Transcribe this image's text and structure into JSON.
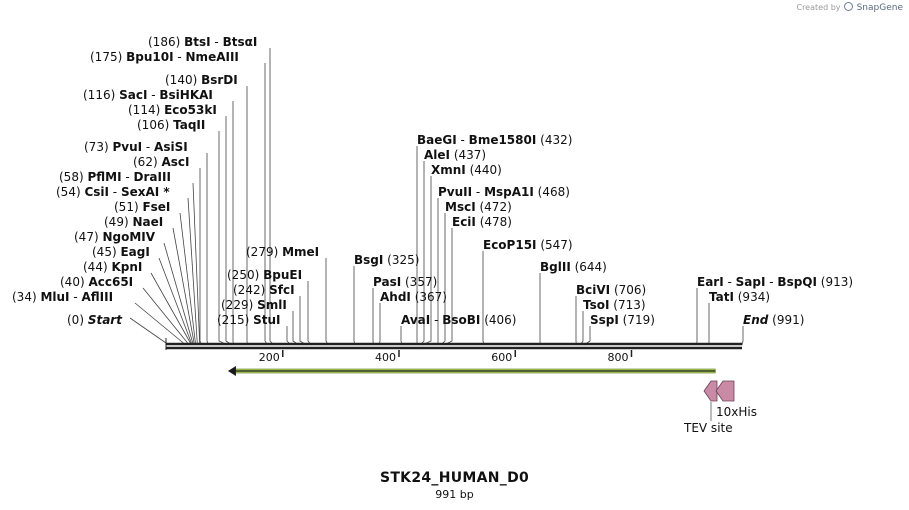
{
  "credit": {
    "prefix": "Created by",
    "brand": "SnapGene"
  },
  "sequence": {
    "name": "STK24_HUMAN_D0",
    "length_label": "991 bp",
    "length": 991
  },
  "ruler": {
    "ticks": [
      200,
      400,
      600,
      800
    ]
  },
  "colors": {
    "feature_arrow": "#b1d35a",
    "tag": "#c98aa6",
    "backbone": "#222222"
  },
  "features": [
    {
      "name": "CDS",
      "start": 110,
      "end": 945,
      "direction": "reverse"
    },
    {
      "name": "10xHis",
      "start": 920,
      "end": 948,
      "direction": "reverse"
    },
    {
      "name": "TEV site",
      "start": 944,
      "end": 966,
      "direction": "reverse"
    }
  ],
  "feature_labels": {
    "his": "10xHis",
    "tev": "TEV site"
  },
  "sites": [
    {
      "pos": 186,
      "pos_text": "(186)",
      "names": [
        "BtsI",
        "BtsαI"
      ],
      "side": "left"
    },
    {
      "pos": 175,
      "pos_text": "(175)",
      "names": [
        "Bpu10I",
        "NmeAIII"
      ],
      "side": "left"
    },
    {
      "pos": 140,
      "pos_text": "(140)",
      "names": [
        "BsrDI"
      ],
      "side": "left"
    },
    {
      "pos": 116,
      "pos_text": "(116)",
      "names": [
        "SacI",
        "BsiHKAI"
      ],
      "side": "left"
    },
    {
      "pos": 114,
      "pos_text": "(114)",
      "names": [
        "Eco53kI"
      ],
      "side": "left"
    },
    {
      "pos": 106,
      "pos_text": "(106)",
      "names": [
        "TaqII"
      ],
      "side": "left"
    },
    {
      "pos": 73,
      "pos_text": "(73)",
      "names": [
        "PvuI",
        "AsiSI"
      ],
      "side": "left"
    },
    {
      "pos": 62,
      "pos_text": "(62)",
      "names": [
        "AscI"
      ],
      "side": "left"
    },
    {
      "pos": 58,
      "pos_text": "(58)",
      "names": [
        "PflMI",
        "DraIII"
      ],
      "side": "left"
    },
    {
      "pos": 54,
      "pos_text": "(54)",
      "names": [
        "CsiI",
        "SexAI *"
      ],
      "side": "left"
    },
    {
      "pos": 51,
      "pos_text": "(51)",
      "names": [
        "FseI"
      ],
      "side": "left"
    },
    {
      "pos": 49,
      "pos_text": "(49)",
      "names": [
        "NaeI"
      ],
      "side": "left"
    },
    {
      "pos": 47,
      "pos_text": "(47)",
      "names": [
        "NgoMIV"
      ],
      "side": "left"
    },
    {
      "pos": 45,
      "pos_text": "(45)",
      "names": [
        "EagI"
      ],
      "side": "left"
    },
    {
      "pos": 44,
      "pos_text": "(44)",
      "names": [
        "KpnI"
      ],
      "side": "left"
    },
    {
      "pos": 40,
      "pos_text": "(40)",
      "names": [
        "Acc65I"
      ],
      "side": "left"
    },
    {
      "pos": 34,
      "pos_text": "(34)",
      "names": [
        "MluI",
        "AflIII"
      ],
      "side": "left"
    },
    {
      "pos": 0,
      "pos_text": "(0)",
      "names": [
        "Start"
      ],
      "side": "left",
      "italic": true
    },
    {
      "pos": 279,
      "pos_text": "(279)",
      "names": [
        "MmeI"
      ],
      "side": "left"
    },
    {
      "pos": 250,
      "pos_text": "(250)",
      "names": [
        "BpuEI"
      ],
      "side": "left"
    },
    {
      "pos": 242,
      "pos_text": "(242)",
      "names": [
        "SfcI"
      ],
      "side": "left"
    },
    {
      "pos": 229,
      "pos_text": "(229)",
      "names": [
        "SmlI"
      ],
      "side": "left"
    },
    {
      "pos": 215,
      "pos_text": "(215)",
      "names": [
        "StuI"
      ],
      "side": "left"
    },
    {
      "pos": 325,
      "pos_text": "(325)",
      "names": [
        "BsgI"
      ],
      "side": "right"
    },
    {
      "pos": 357,
      "pos_text": "(357)",
      "names": [
        "PasI"
      ],
      "side": "right"
    },
    {
      "pos": 367,
      "pos_text": "(367)",
      "names": [
        "AhdI"
      ],
      "side": "right"
    },
    {
      "pos": 406,
      "pos_text": "(406)",
      "names": [
        "AvaI",
        "BsoBI"
      ],
      "side": "right"
    },
    {
      "pos": 432,
      "pos_text": "(432)",
      "names": [
        "BaeGI",
        "Bme1580I"
      ],
      "side": "right"
    },
    {
      "pos": 437,
      "pos_text": "(437)",
      "names": [
        "AleI"
      ],
      "side": "right"
    },
    {
      "pos": 440,
      "pos_text": "(440)",
      "names": [
        "XmnI"
      ],
      "side": "right"
    },
    {
      "pos": 468,
      "pos_text": "(468)",
      "names": [
        "PvuII",
        "MspA1I"
      ],
      "side": "right"
    },
    {
      "pos": 472,
      "pos_text": "(472)",
      "names": [
        "MscI"
      ],
      "side": "right"
    },
    {
      "pos": 478,
      "pos_text": "(478)",
      "names": [
        "EciI"
      ],
      "side": "right"
    },
    {
      "pos": 547,
      "pos_text": "(547)",
      "names": [
        "EcoP15I"
      ],
      "side": "right"
    },
    {
      "pos": 644,
      "pos_text": "(644)",
      "names": [
        "BglII"
      ],
      "side": "right"
    },
    {
      "pos": 706,
      "pos_text": "(706)",
      "names": [
        "BciVI"
      ],
      "side": "right"
    },
    {
      "pos": 713,
      "pos_text": "(713)",
      "names": [
        "TsoI"
      ],
      "side": "right"
    },
    {
      "pos": 719,
      "pos_text": "(719)",
      "names": [
        "SspI"
      ],
      "side": "right"
    },
    {
      "pos": 913,
      "pos_text": "(913)",
      "names": [
        "EarI",
        "SapI",
        "BspQI"
      ],
      "side": "right"
    },
    {
      "pos": 934,
      "pos_text": "(934)",
      "names": [
        "TatI"
      ],
      "side": "right"
    },
    {
      "pos": 991,
      "pos_text": "(991)",
      "names": [
        "End"
      ],
      "side": "right",
      "italic": true
    }
  ]
}
